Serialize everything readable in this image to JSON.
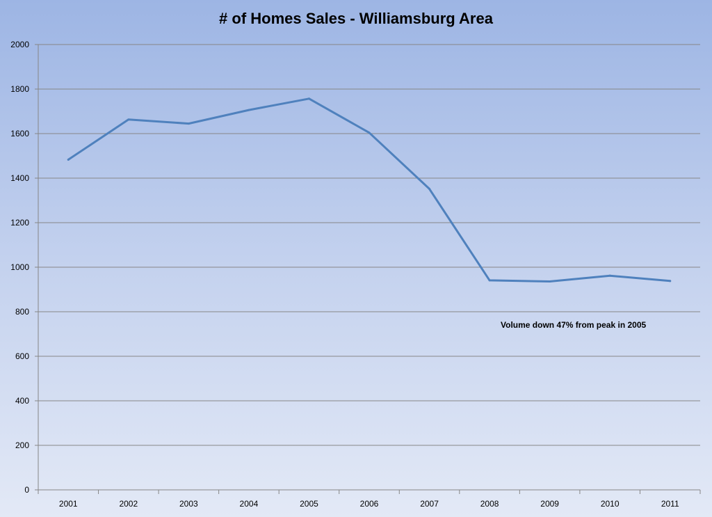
{
  "chart_data": {
    "type": "line",
    "title": "# of Homes Sales - Williamsburg Area",
    "xlabel": "",
    "ylabel": "",
    "categories": [
      "2001",
      "2002",
      "2003",
      "2004",
      "2005",
      "2006",
      "2007",
      "2008",
      "2009",
      "2010",
      "2011"
    ],
    "series": [
      {
        "values": [
          1483,
          1663,
          1645,
          1706,
          1757,
          1604,
          1352,
          941,
          936,
          962,
          938
        ]
      }
    ],
    "ylim": [
      0,
      2000
    ],
    "yticks": [
      "0",
      "200",
      "400",
      "600",
      "800",
      "1000",
      "1200",
      "1400",
      "1600",
      "1800",
      "2000"
    ],
    "grid": true,
    "legend": "none",
    "annotation": "Volume down 47% from peak in 2005",
    "colors": {
      "line": "#4f81bd",
      "grid": "#878787",
      "axis": "#868686"
    }
  }
}
